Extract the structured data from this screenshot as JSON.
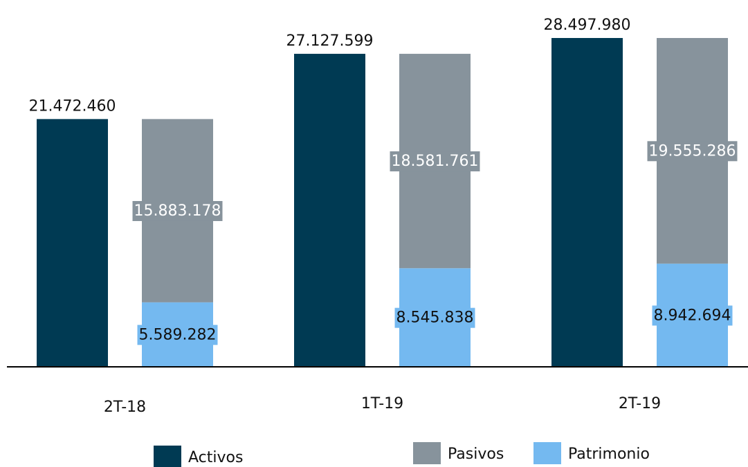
{
  "chart_data": {
    "type": "bar",
    "categories": [
      "2T-18",
      "1T-19",
      "2T-19"
    ],
    "series": [
      {
        "name": "Activos",
        "color": "#003a53",
        "values": [
          21472460,
          27127599,
          28497980
        ],
        "value_labels": [
          "21.472.460",
          "27.127.599",
          "28.497.980"
        ]
      },
      {
        "name": "Pasivos",
        "color": "#87939c",
        "values": [
          15883178,
          18581761,
          19555286
        ],
        "value_labels": [
          "15.883.178",
          "18.581.761",
          "19.555.286"
        ]
      },
      {
        "name": "Patrimonio",
        "color": "#74b9f0",
        "values": [
          5589282,
          8545838,
          8942694
        ],
        "value_labels": [
          "5.589.282",
          "8.545.838",
          "8.942.694"
        ]
      }
    ]
  }
}
